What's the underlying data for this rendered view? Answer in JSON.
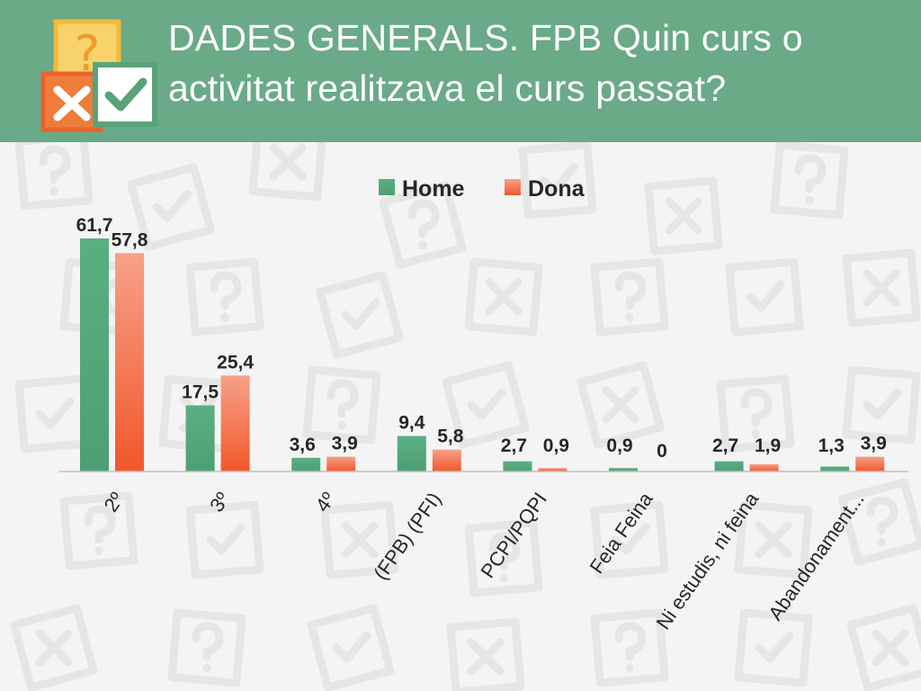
{
  "slide": {
    "title_line1": "DADES GENERALS. FPB Quin curs o",
    "title_line2": "activitat realitzava el curs passat?"
  },
  "icons": [
    "question-mark-icon",
    "cross-icon",
    "checkmark-icon"
  ],
  "colors": {
    "header": "#6aaa87",
    "home": "#52a87a",
    "dona": "#f2663c",
    "dona_light": "#f5a48a",
    "label": "#262626"
  },
  "chart_data": {
    "type": "bar",
    "categories": [
      "2º",
      "3º",
      "4º",
      "(FPB) (PFI)",
      "PCPI/PQPI",
      "Feia Feina",
      "Ni estudis, ni feina",
      "Abandonament..."
    ],
    "series": [
      {
        "name": "Home",
        "values": [
          61.7,
          17.5,
          3.6,
          9.4,
          2.7,
          0.9,
          2.7,
          1.3
        ],
        "labels": [
          "61,7",
          "17,5",
          "3,6",
          "9,4",
          "2,7",
          "0,9",
          "2,7",
          "1,3"
        ]
      },
      {
        "name": "Dona",
        "values": [
          57.8,
          25.4,
          3.9,
          5.8,
          0.9,
          0,
          1.9,
          3.9
        ],
        "labels": [
          "57,8",
          "25,4",
          "3,9",
          "5,8",
          "0,9",
          "0",
          "1,9",
          "3,9"
        ]
      }
    ],
    "title": "",
    "xlabel": "",
    "ylabel": "",
    "ylim": [
      0,
      61.7
    ],
    "grid": false,
    "legend": "top-center",
    "data_labels": true
  }
}
